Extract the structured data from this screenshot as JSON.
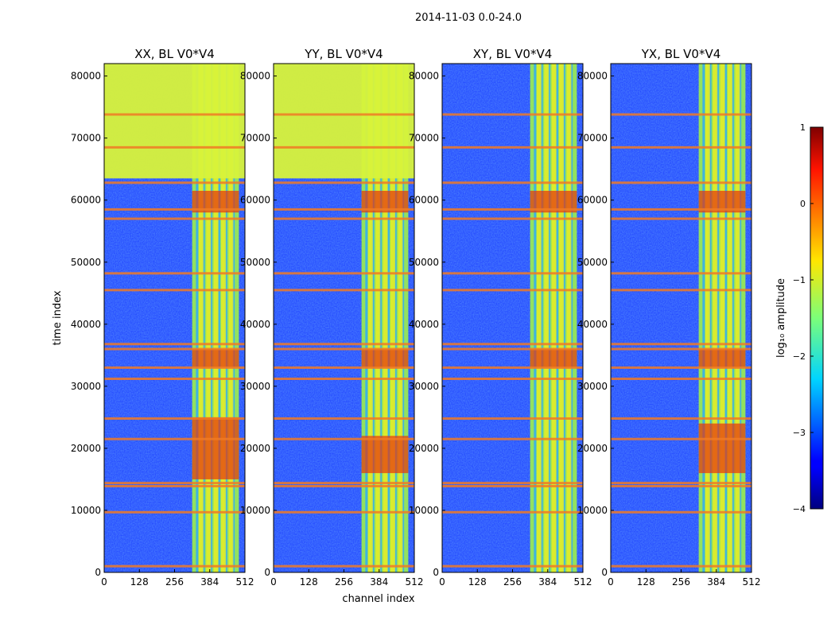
{
  "suptitle": "2014-11-03 0.0-24.0",
  "chart_data": [
    {
      "type": "heatmap",
      "title": "XX, BL V0*V4",
      "xlabel": "",
      "ylabel": "time index",
      "xlim": [
        0,
        512
      ],
      "ylim": [
        0,
        82000
      ],
      "xticks": [
        "0",
        "128",
        "256",
        "384",
        "512"
      ],
      "yticks": [
        "0",
        "10000",
        "20000",
        "30000",
        "40000",
        "50000",
        "60000",
        "70000",
        "80000"
      ],
      "bright_channel_band": [
        320,
        490
      ],
      "bright_time_bands": [
        [
          63500,
          82000
        ]
      ],
      "hot_spots": [
        [
          33000,
          36000
        ],
        [
          58000,
          61500
        ],
        [
          15000,
          25000
        ]
      ]
    },
    {
      "type": "heatmap",
      "title": "YY, BL V0*V4",
      "xlabel": "channel index",
      "ylabel": "",
      "xlim": [
        0,
        512
      ],
      "ylim": [
        0,
        82000
      ],
      "xticks": [
        "0",
        "128",
        "256",
        "384",
        "512"
      ],
      "yticks": [
        "0",
        "10000",
        "20000",
        "30000",
        "40000",
        "50000",
        "60000",
        "70000",
        "80000"
      ],
      "bright_channel_band": [
        320,
        490
      ],
      "bright_time_bands": [
        [
          63500,
          82000
        ]
      ],
      "hot_spots": [
        [
          33000,
          36000
        ],
        [
          58000,
          61500
        ],
        [
          16000,
          22000
        ]
      ]
    },
    {
      "type": "heatmap",
      "title": "XY, BL V0*V4",
      "xlabel": "",
      "ylabel": "",
      "xlim": [
        0,
        512
      ],
      "ylim": [
        0,
        82000
      ],
      "xticks": [
        "0",
        "128",
        "256",
        "384",
        "512"
      ],
      "yticks": [
        "0",
        "10000",
        "20000",
        "30000",
        "40000",
        "50000",
        "60000",
        "70000",
        "80000"
      ],
      "bright_channel_band": [
        320,
        490
      ],
      "bright_time_bands": [],
      "hot_spots": [
        [
          33000,
          36000
        ],
        [
          58000,
          61500
        ]
      ]
    },
    {
      "type": "heatmap",
      "title": "YX, BL V0*V4",
      "xlabel": "",
      "ylabel": "",
      "xlim": [
        0,
        512
      ],
      "ylim": [
        0,
        82000
      ],
      "xticks": [
        "0",
        "128",
        "256",
        "384",
        "512"
      ],
      "yticks": [
        "0",
        "10000",
        "20000",
        "30000",
        "40000",
        "50000",
        "60000",
        "70000",
        "80000"
      ],
      "bright_channel_band": [
        320,
        490
      ],
      "bright_time_bands": [],
      "hot_spots": [
        [
          33000,
          36000
        ],
        [
          58000,
          61500
        ],
        [
          16000,
          24000
        ]
      ]
    }
  ],
  "colorbar": {
    "label": "log₁₀ amplitude",
    "range": [
      -4,
      1
    ],
    "ticks": [
      "1",
      "0",
      "−1",
      "−2",
      "−3",
      "−4"
    ],
    "colormap": "jet"
  }
}
